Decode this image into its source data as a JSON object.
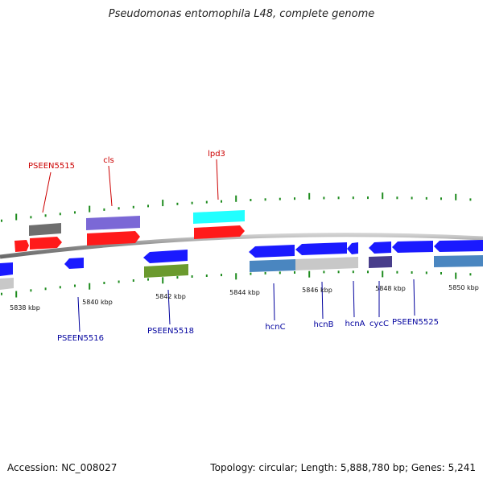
{
  "title": "Pseudomonas entomophila L48, complete genome",
  "footer": {
    "accession": "Accession: NC_008027",
    "summary": "Topology: circular; Length: 5,888,780 bp; Genes: 5,241"
  },
  "colors": {
    "red": "#ff1a1a",
    "blue": "#1a1aff",
    "gray": "#c8c8c8",
    "darkgray": "#6e6e6e",
    "purple": "#7b68d6",
    "cyan": "#22ffff",
    "olive": "#6b9a2e",
    "steel": "#4a86c0",
    "indigo": "#483d8b",
    "top_label": "#cc0000",
    "bottom_label": "#00009e",
    "tick": "#1f8c1f"
  },
  "scale_labels": [
    "5838 kbp",
    "5840 kbp",
    "5842 kbp",
    "5844 kbp",
    "5846 kbp",
    "5848 kbp",
    "5850 kbp"
  ],
  "genes_labeled": [
    {
      "label": "PSEEN5515",
      "strand": "top"
    },
    {
      "label": "cls",
      "strand": "top"
    },
    {
      "label": "lpd3",
      "strand": "top"
    },
    {
      "label": "PSEEN5516",
      "strand": "bottom"
    },
    {
      "label": "PSEEN5518",
      "strand": "bottom"
    },
    {
      "label": "hcnC",
      "strand": "bottom"
    },
    {
      "label": "hcnB",
      "strand": "bottom"
    },
    {
      "label": "hcnA",
      "strand": "bottom"
    },
    {
      "label": "cycC",
      "strand": "bottom"
    },
    {
      "label": "PSEEN5525",
      "strand": "bottom"
    }
  ]
}
